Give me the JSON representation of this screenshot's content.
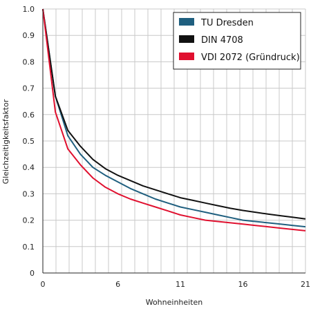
{
  "chart_data": {
    "type": "line",
    "title": "",
    "xlabel": "Wohneinheiten",
    "ylabel": "Gleichzeitigkeitsfaktor",
    "xlim": [
      0,
      21
    ],
    "ylim": [
      0,
      1.0
    ],
    "x_ticks": [
      "0",
      "6",
      "11",
      "16",
      "21"
    ],
    "x_tick_values": [
      0,
      6,
      11,
      16,
      21
    ],
    "y_ticks": [
      "0",
      "0.1",
      "0.2",
      "0.3",
      "0.4",
      "0.5",
      "0.6",
      "0.7",
      "0.8",
      "0.9",
      "1.0"
    ],
    "y_tick_values": [
      0,
      0.1,
      0.2,
      0.3,
      0.4,
      0.5,
      0.6,
      0.7,
      0.8,
      0.9,
      1.0
    ],
    "grid": true,
    "legend_position": "top-right",
    "series": [
      {
        "name": "TU Dresden",
        "color": "#1f5f7f",
        "x": [
          0,
          1,
          2,
          3,
          4,
          5,
          6,
          7,
          8,
          9,
          10,
          11,
          12,
          13,
          14,
          15,
          16,
          17,
          18,
          19,
          20,
          21
        ],
        "values": [
          1.0,
          0.67,
          0.52,
          0.45,
          0.4,
          0.37,
          0.345,
          0.32,
          0.3,
          0.28,
          0.265,
          0.25,
          0.24,
          0.23,
          0.22,
          0.21,
          0.2,
          0.195,
          0.19,
          0.185,
          0.18,
          0.175
        ]
      },
      {
        "name": "DIN 4708",
        "color": "#111111",
        "x": [
          0,
          1,
          2,
          3,
          4,
          5,
          6,
          7,
          8,
          9,
          10,
          11,
          12,
          13,
          14,
          15,
          16,
          17,
          18,
          19,
          20,
          21
        ],
        "values": [
          1.0,
          0.67,
          0.54,
          0.48,
          0.43,
          0.395,
          0.37,
          0.35,
          0.33,
          0.315,
          0.3,
          0.285,
          0.275,
          0.265,
          0.255,
          0.245,
          0.237,
          0.23,
          0.223,
          0.217,
          0.211,
          0.205
        ]
      },
      {
        "name": "VDI 2072 (Gründruck)",
        "color": "#e0102f",
        "x": [
          0,
          1,
          2,
          3,
          4,
          5,
          6,
          7,
          8,
          9,
          10,
          11,
          12,
          13,
          14,
          15,
          16,
          17,
          18,
          19,
          20,
          21
        ],
        "values": [
          1.0,
          0.61,
          0.47,
          0.41,
          0.36,
          0.325,
          0.3,
          0.28,
          0.265,
          0.25,
          0.235,
          0.22,
          0.21,
          0.2,
          0.195,
          0.19,
          0.185,
          0.18,
          0.175,
          0.17,
          0.165,
          0.16
        ]
      }
    ]
  }
}
